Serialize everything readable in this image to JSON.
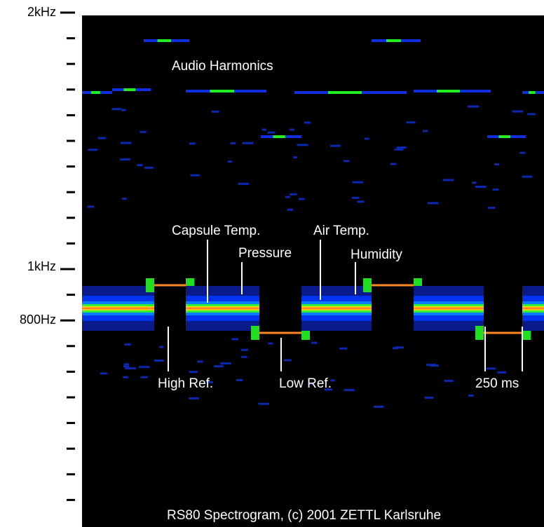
{
  "axis": {
    "labels": [
      "2kHz",
      "1kHz",
      "800Hz"
    ]
  },
  "annotations": {
    "harmonics": "Audio Harmonics",
    "capsule": "Capsule Temp.",
    "air": "Air Temp.",
    "pressure": "Pressure",
    "humidity": "Humidity",
    "high_ref": "High Ref.",
    "low_ref": "Low Ref.",
    "duration": "250 ms"
  },
  "footer": "RS80 Spectrogram, (c) 2001 ZETTL Karlsruhe"
}
